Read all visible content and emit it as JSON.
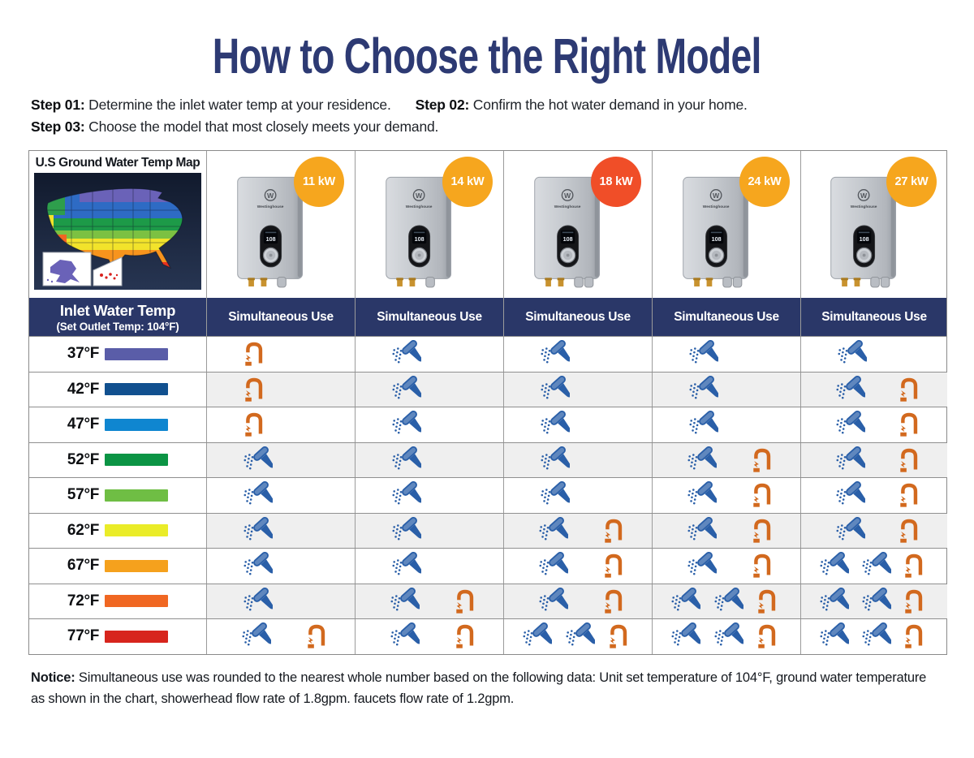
{
  "title": "How to Choose the Right Model",
  "steps": [
    {
      "label": "Step 01:",
      "text": "Determine the inlet water temp at your residence."
    },
    {
      "label": "Step 02:",
      "text": "Confirm the hot water demand in your home."
    },
    {
      "label": "Step 03:",
      "text": "Choose the model that most closely meets your demand."
    }
  ],
  "map": {
    "title": "U.S Ground Water Temp Map"
  },
  "inlet_header": {
    "line1": "Inlet Water Temp",
    "line2": "(Set Outlet Temp: 104°F)"
  },
  "simultaneous_use_label": "Simultaneous Use",
  "models": [
    {
      "power": "11 kW",
      "badge_color": "#F6A61E",
      "brand": "Westinghouse",
      "display": "108",
      "glands": 1
    },
    {
      "power": "14 kW",
      "badge_color": "#F6A61E",
      "brand": "Westinghouse",
      "display": "108",
      "glands": 1
    },
    {
      "power": "18 kW",
      "badge_color": "#F04E28",
      "brand": "Westinghouse",
      "display": "108",
      "glands": 2
    },
    {
      "power": "24 kW",
      "badge_color": "#F6A61E",
      "brand": "Westinghouse",
      "display": "108",
      "glands": 2
    },
    {
      "power": "27 kW",
      "badge_color": "#F6A61E",
      "brand": "Westinghouse",
      "display": "108",
      "glands": 2
    }
  ],
  "icons": {
    "shower": "showerhead-icon",
    "faucet": "faucet-icon",
    "shower_color": "#2A5FA8",
    "faucet_color": "#D2691E"
  },
  "rows": [
    {
      "temp": "37°F",
      "swatch_color": "#5A5DA8",
      "cells": [
        {
          "showers": 0,
          "faucets": 1
        },
        {
          "showers": 1,
          "faucets": 0
        },
        {
          "showers": 1,
          "faucets": 0
        },
        {
          "showers": 1,
          "faucets": 0
        },
        {
          "showers": 1,
          "faucets": 0
        }
      ]
    },
    {
      "temp": "42°F",
      "swatch_color": "#11508F",
      "cells": [
        {
          "showers": 0,
          "faucets": 1
        },
        {
          "showers": 1,
          "faucets": 0
        },
        {
          "showers": 1,
          "faucets": 0
        },
        {
          "showers": 1,
          "faucets": 0
        },
        {
          "showers": 1,
          "faucets": 1
        }
      ]
    },
    {
      "temp": "47°F",
      "swatch_color": "#0F86D0",
      "cells": [
        {
          "showers": 0,
          "faucets": 1
        },
        {
          "showers": 1,
          "faucets": 0
        },
        {
          "showers": 1,
          "faucets": 0
        },
        {
          "showers": 1,
          "faucets": 0
        },
        {
          "showers": 1,
          "faucets": 1
        }
      ]
    },
    {
      "temp": "52°F",
      "swatch_color": "#0B9444",
      "cells": [
        {
          "showers": 1,
          "faucets": 0
        },
        {
          "showers": 1,
          "faucets": 0
        },
        {
          "showers": 1,
          "faucets": 0
        },
        {
          "showers": 1,
          "faucets": 1
        },
        {
          "showers": 1,
          "faucets": 1
        }
      ]
    },
    {
      "temp": "57°F",
      "swatch_color": "#6FBE44",
      "cells": [
        {
          "showers": 1,
          "faucets": 0
        },
        {
          "showers": 1,
          "faucets": 0
        },
        {
          "showers": 1,
          "faucets": 0
        },
        {
          "showers": 1,
          "faucets": 1
        },
        {
          "showers": 1,
          "faucets": 1
        }
      ]
    },
    {
      "temp": "62°F",
      "swatch_color": "#EAEC28",
      "cells": [
        {
          "showers": 1,
          "faucets": 0
        },
        {
          "showers": 1,
          "faucets": 0
        },
        {
          "showers": 1,
          "faucets": 1
        },
        {
          "showers": 1,
          "faucets": 1
        },
        {
          "showers": 1,
          "faucets": 1
        }
      ]
    },
    {
      "temp": "67°F",
      "swatch_color": "#F5A11D",
      "cells": [
        {
          "showers": 1,
          "faucets": 0
        },
        {
          "showers": 1,
          "faucets": 0
        },
        {
          "showers": 1,
          "faucets": 1
        },
        {
          "showers": 1,
          "faucets": 1
        },
        {
          "showers": 2,
          "faucets": 1
        }
      ]
    },
    {
      "temp": "72°F",
      "swatch_color": "#F06722",
      "cells": [
        {
          "showers": 1,
          "faucets": 0
        },
        {
          "showers": 1,
          "faucets": 1
        },
        {
          "showers": 1,
          "faucets": 1
        },
        {
          "showers": 2,
          "faucets": 1
        },
        {
          "showers": 2,
          "faucets": 1
        }
      ]
    },
    {
      "temp": "77°F",
      "swatch_color": "#D7251D",
      "cells": [
        {
          "showers": 1,
          "faucets": 1
        },
        {
          "showers": 1,
          "faucets": 1
        },
        {
          "showers": 2,
          "faucets": 1
        },
        {
          "showers": 2,
          "faucets": 1
        },
        {
          "showers": 2,
          "faucets": 1
        }
      ]
    }
  ],
  "notice": {
    "label": "Notice:",
    "text": "Simultaneous use was rounded to the nearest whole number based on the following data: Unit set temperature of 104°F, ground water temperature as shown in the chart, showerhead flow rate of 1.8gpm. faucets flow rate of 1.2gpm."
  },
  "chart_data": {
    "type": "table",
    "title": "How to Choose the Right Model",
    "xlabel": "Inlet Water Temp (Set Outlet Temp: 104°F)",
    "ylabel": "Simultaneous Use per model",
    "categories": [
      "37°F",
      "42°F",
      "47°F",
      "52°F",
      "57°F",
      "62°F",
      "67°F",
      "72°F",
      "77°F"
    ],
    "series": [
      {
        "name": "11 kW",
        "values": [
          "1 faucet",
          "1 faucet",
          "1 faucet",
          "1 shower",
          "1 shower",
          "1 shower",
          "1 shower",
          "1 shower",
          "1 shower + 1 faucet"
        ]
      },
      {
        "name": "14 kW",
        "values": [
          "1 shower",
          "1 shower",
          "1 shower",
          "1 shower",
          "1 shower",
          "1 shower",
          "1 shower",
          "1 shower + 1 faucet",
          "1 shower + 1 faucet"
        ]
      },
      {
        "name": "18 kW",
        "values": [
          "1 shower",
          "1 shower",
          "1 shower",
          "1 shower",
          "1 shower",
          "1 shower + 1 faucet",
          "1 shower + 1 faucet",
          "1 shower + 1 faucet",
          "2 showers + 1 faucet"
        ]
      },
      {
        "name": "24 kW",
        "values": [
          "1 shower",
          "1 shower",
          "1 shower",
          "1 shower + 1 faucet",
          "1 shower + 1 faucet",
          "1 shower + 1 faucet",
          "1 shower + 1 faucet",
          "2 showers + 1 faucet",
          "2 showers + 1 faucet"
        ]
      },
      {
        "name": "27 kW",
        "values": [
          "1 shower",
          "1 shower + 1 faucet",
          "1 shower + 1 faucet",
          "1 shower + 1 faucet",
          "1 shower + 1 faucet",
          "1 shower + 1 faucet",
          "2 showers + 1 faucet",
          "2 showers + 1 faucet",
          "2 showers + 1 faucet"
        ]
      }
    ]
  }
}
